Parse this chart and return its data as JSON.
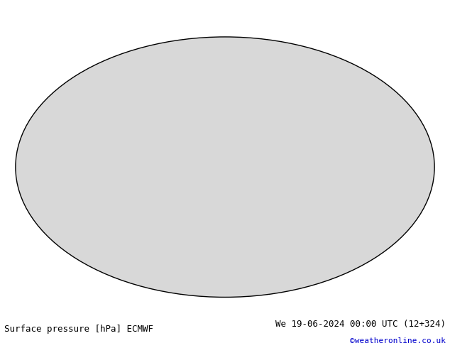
{
  "title_left": "Surface pressure [hPa] ECMWF",
  "title_right": "We 19-06-2024 00:00 UTC (12+324)",
  "copyright": "©weatheronline.co.uk",
  "bg_color": "#ffffff",
  "map_bg_color": "#d8d8d8",
  "land_color": "#c8e8b0",
  "water_color": "#d8d8d8",
  "isobar_black_color": "#000000",
  "isobar_blue_color": "#0000cc",
  "isobar_red_color": "#cc0000",
  "label_black": "#000000",
  "label_blue": "#0000cc",
  "label_red": "#cc0000",
  "title_color": "#000000",
  "copyright_color": "#0000cc",
  "font_size_title": 9,
  "font_size_copyright": 8,
  "dpi": 100,
  "fig_width": 6.34,
  "fig_height": 4.9
}
